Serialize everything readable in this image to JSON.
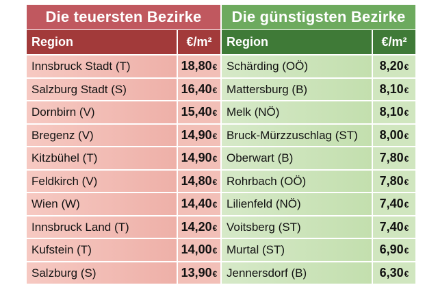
{
  "left": {
    "title": "Die teuersten Bezirke",
    "col_region": "Region",
    "col_price": "€/m²",
    "rows": [
      {
        "region": "Innsbruck Stadt (T)",
        "price": "18,80",
        "cur": "€"
      },
      {
        "region": "Salzburg Stadt (S)",
        "price": "16,40",
        "cur": "€"
      },
      {
        "region": "Dornbirn (V)",
        "price": "15,40",
        "cur": "€"
      },
      {
        "region": "Bregenz (V)",
        "price": "14,90",
        "cur": "€"
      },
      {
        "region": "Kitzbühel (T)",
        "price": "14,90",
        "cur": "€"
      },
      {
        "region": "Feldkirch (V)",
        "price": "14,80",
        "cur": "€"
      },
      {
        "region": "Wien (W)",
        "price": "14,40",
        "cur": "€"
      },
      {
        "region": "Innsbruck Land (T)",
        "price": "14,20",
        "cur": "€"
      },
      {
        "region": "Kufstein (T)",
        "price": "14,00",
        "cur": "€"
      },
      {
        "region": "Salzburg (S)",
        "price": "13,90",
        "cur": "€"
      }
    ]
  },
  "right": {
    "title": "Die günstigsten Bezirke",
    "col_region": "Region",
    "col_price": "€/m²",
    "rows": [
      {
        "region": "Schärding (OÖ)",
        "price": "8,20",
        "cur": "€"
      },
      {
        "region": "Mattersburg (B)",
        "price": "8,10",
        "cur": "€"
      },
      {
        "region": "Melk (NÖ)",
        "price": "8,10",
        "cur": "€"
      },
      {
        "region": "Bruck-Mürzzuschlag (ST)",
        "price": "8,00",
        "cur": "€"
      },
      {
        "region": "Oberwart (B)",
        "price": "7,80",
        "cur": "€"
      },
      {
        "region": "Rohrbach (OÖ)",
        "price": "7,80",
        "cur": "€"
      },
      {
        "region": "Lilienfeld (NÖ)",
        "price": "7,40",
        "cur": "€"
      },
      {
        "region": "Voitsberg (ST)",
        "price": "7,40",
        "cur": "€"
      },
      {
        "region": "Murtal (ST)",
        "price": "6,90",
        "cur": "€"
      },
      {
        "region": "Jennersdorf (B)",
        "price": "6,30",
        "cur": "€"
      }
    ]
  }
}
